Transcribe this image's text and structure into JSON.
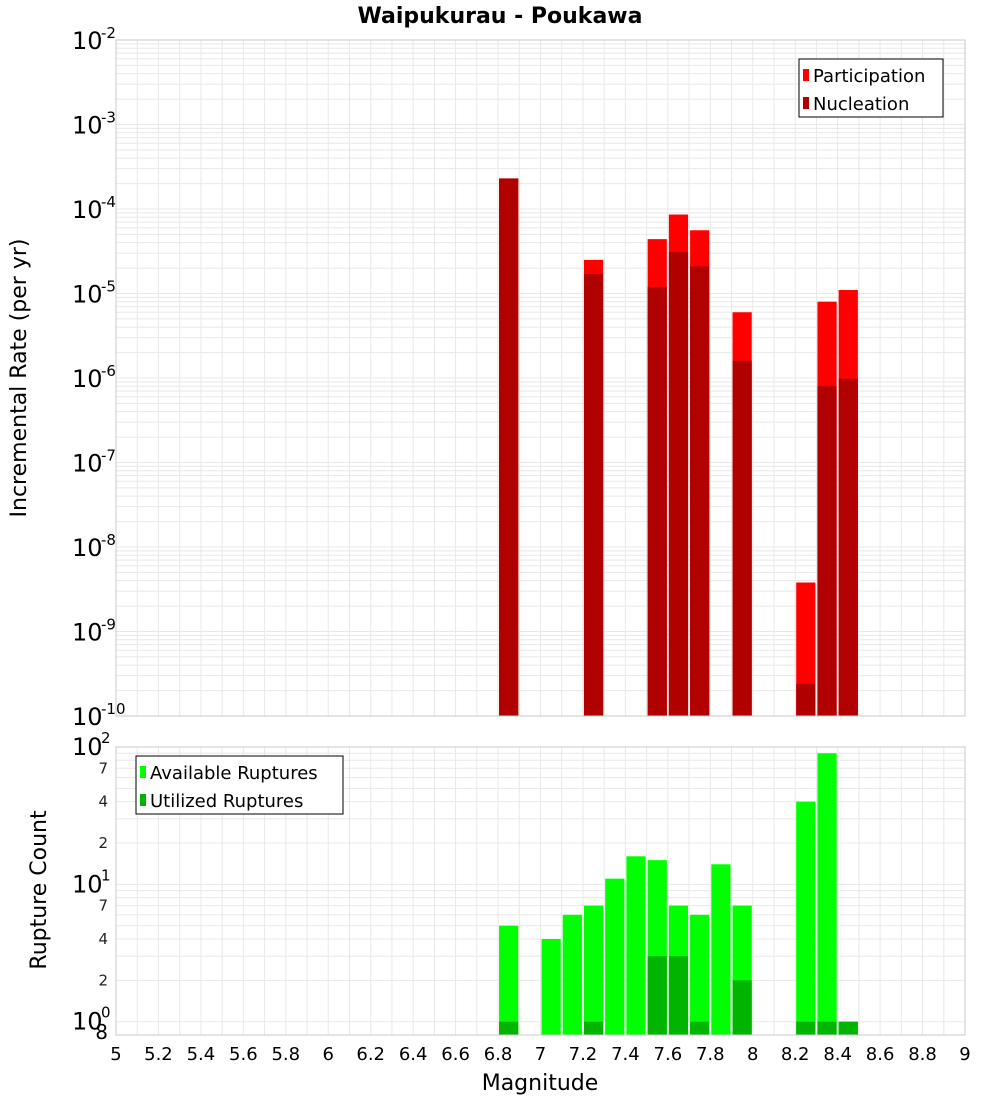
{
  "colors": {
    "participation": "#ff0000",
    "nucleation": "#b00000",
    "available": "#00ff00",
    "utilized": "#00b400",
    "grid": "#e8e8e8",
    "border": "#c8c8c8"
  },
  "chart_data": [
    {
      "type": "bar",
      "title": "Waipukurau - Poukawa",
      "xlabel": "",
      "ylabel": "Incremental Rate (per yr)",
      "yscale": "log",
      "xlim": [
        5,
        9
      ],
      "ylim": [
        1e-10,
        0.01
      ],
      "y_ticks": [
        {
          "base": "10",
          "exp": "-10",
          "value": 1e-10
        },
        {
          "base": "10",
          "exp": "-9",
          "value": 1e-09
        },
        {
          "base": "10",
          "exp": "-8",
          "value": 1e-08
        },
        {
          "base": "10",
          "exp": "-7",
          "value": 1e-07
        },
        {
          "base": "10",
          "exp": "-6",
          "value": 1e-06
        },
        {
          "base": "10",
          "exp": "-5",
          "value": 1e-05
        },
        {
          "base": "10",
          "exp": "-4",
          "value": 0.0001
        },
        {
          "base": "10",
          "exp": "-3",
          "value": 0.001
        },
        {
          "base": "10",
          "exp": "-2",
          "value": 0.01
        }
      ],
      "bar_width": 0.1,
      "grid": true,
      "legend_position": "top-right",
      "series": [
        {
          "name": "Participation",
          "x": [
            6.85,
            7.25,
            7.55,
            7.65,
            7.75,
            7.95,
            8.25,
            8.35,
            8.45
          ],
          "values": [
            0.00023,
            2.5e-05,
            4.4e-05,
            8.6e-05,
            5.6e-05,
            6e-06,
            3.8e-09,
            8e-06,
            1.1e-05
          ]
        },
        {
          "name": "Nucleation",
          "x": [
            6.85,
            7.25,
            7.55,
            7.65,
            7.75,
            7.95,
            8.25,
            8.35,
            8.45
          ],
          "values": [
            0.00023,
            1.7e-05,
            1.2e-05,
            3.1e-05,
            2.1e-05,
            1.6e-06,
            2.4e-10,
            8e-07,
            9.8e-07
          ]
        }
      ]
    },
    {
      "type": "bar",
      "title": "",
      "xlabel": "Magnitude",
      "ylabel": "Rupture Count",
      "yscale": "log",
      "xlim": [
        5,
        9
      ],
      "ylim": [
        0.8,
        100
      ],
      "x_ticks": [
        "5",
        "5.2",
        "5.4",
        "5.6",
        "5.8",
        "6",
        "6.2",
        "6.4",
        "6.6",
        "6.8",
        "7",
        "7.2",
        "7.4",
        "7.6",
        "7.8",
        "8",
        "8.2",
        "8.4",
        "8.6",
        "8.8",
        "9"
      ],
      "y_major_ticks": [
        {
          "base": "10",
          "exp": "0",
          "value": 1
        },
        {
          "base": "10",
          "exp": "1",
          "value": 10
        },
        {
          "base": "10",
          "exp": "2",
          "value": 100
        }
      ],
      "y_minor_ticks": [
        {
          "label": "8",
          "value": 0.8
        },
        {
          "label": "2",
          "value": 2
        },
        {
          "label": "4",
          "value": 4
        },
        {
          "label": "7",
          "value": 7
        },
        {
          "label": "2",
          "value": 20
        },
        {
          "label": "4",
          "value": 40
        },
        {
          "label": "7",
          "value": 70
        }
      ],
      "bar_width": 0.1,
      "grid": true,
      "legend_position": "top-left",
      "series": [
        {
          "name": "Available Ruptures",
          "x": [
            6.85,
            7.05,
            7.15,
            7.25,
            7.35,
            7.45,
            7.55,
            7.65,
            7.75,
            7.85,
            7.95,
            8.25,
            8.35,
            8.45
          ],
          "values": [
            5,
            4,
            6,
            7,
            11,
            16,
            15,
            7,
            6,
            14,
            7,
            40,
            90,
            1
          ]
        },
        {
          "name": "Utilized Ruptures",
          "x": [
            6.85,
            7.25,
            7.55,
            7.65,
            7.75,
            7.95,
            8.25,
            8.35,
            8.45
          ],
          "values": [
            1,
            1,
            3,
            3,
            1,
            2,
            1,
            1,
            1
          ]
        }
      ]
    }
  ]
}
